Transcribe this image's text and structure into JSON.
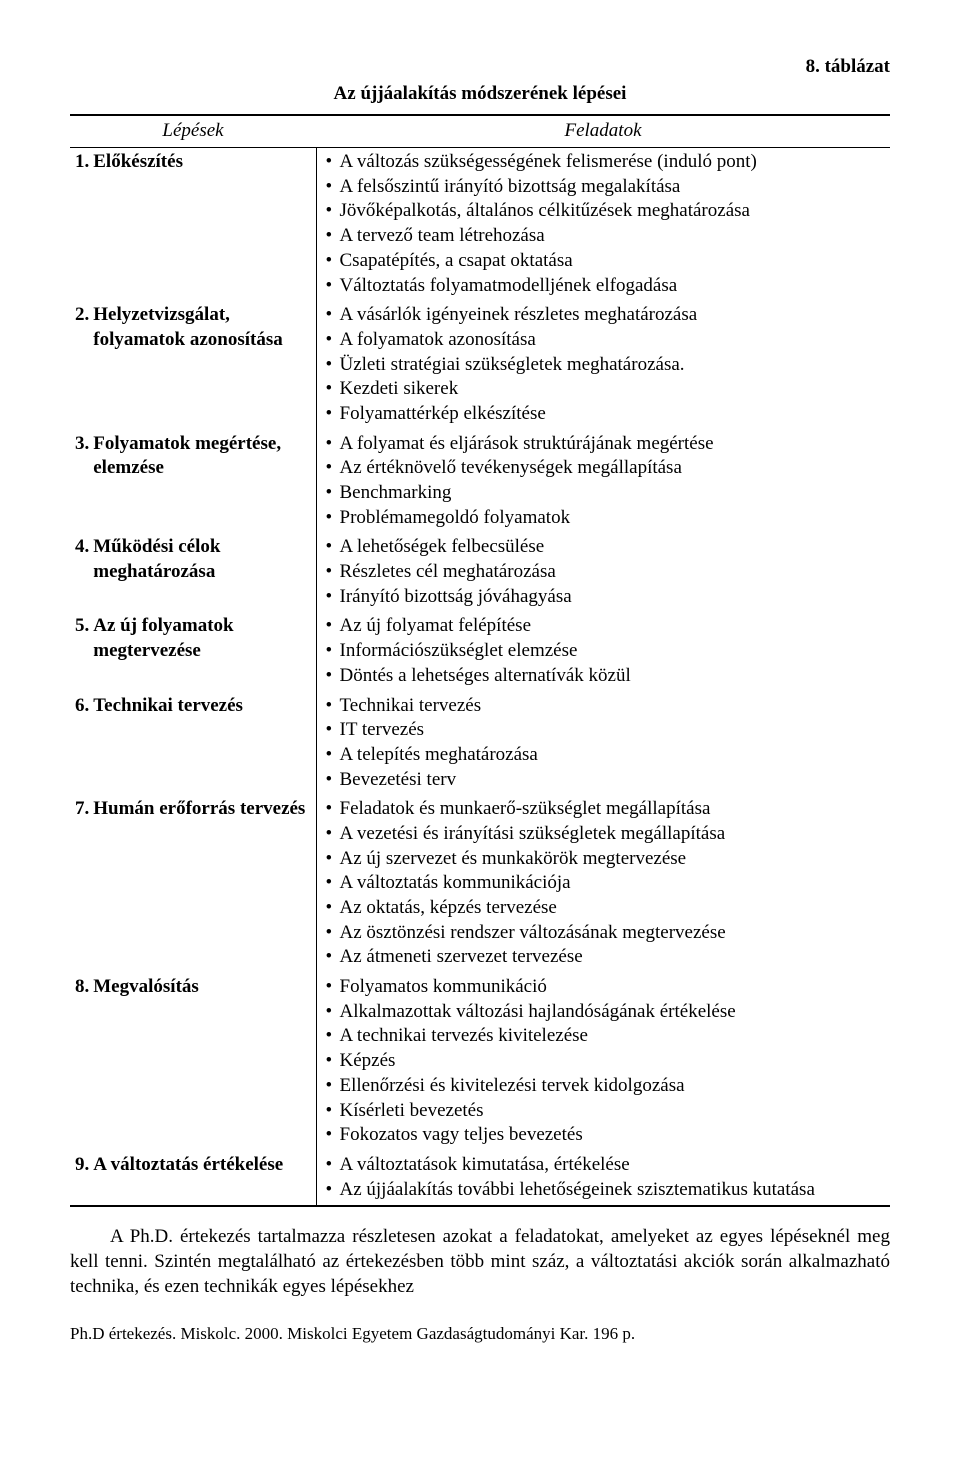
{
  "table_label": "8. táblázat",
  "title": "Az újjáalakítás módszerének lépései",
  "headers": {
    "steps": "Lépések",
    "tasks": "Feladatok"
  },
  "rows": [
    {
      "num": "1.",
      "name": "Előkészítés",
      "bold": true,
      "tasks": [
        "A változás szükségességének felismerése (induló pont)",
        "A felsőszintű irányító bizottság megalakítása",
        "Jövőképalkotás, általános célkitűzések meghatározása",
        "A tervező team létrehozása",
        "Csapatépítés, a csapat oktatása",
        "Változtatás folyamatmodelljének elfogadása"
      ]
    },
    {
      "num": "2.",
      "name": "Helyzetvizsgálat, folyamatok azonosítása",
      "bold": true,
      "tasks": [
        "A vásárlók igényeinek részletes meghatározása",
        "A folyamatok azonosítása",
        "Üzleti stratégiai szükségletek meghatározása.",
        "Kezdeti sikerek",
        "Folyamattérkép elkészítése"
      ]
    },
    {
      "num": "3.",
      "name": "Folyamatok megértése, elemzése",
      "bold": true,
      "tasks": [
        "A folyamat és eljárások struktúrájának megértése",
        "Az értéknövelő tevékenységek megállapítása",
        "Benchmarking",
        "Problémamegoldó folyamatok"
      ]
    },
    {
      "num": "4.",
      "name": "Működési célok meghatározása",
      "bold": true,
      "tasks": [
        "A lehetőségek felbecsülése",
        "Részletes cél meghatározása",
        "Irányító bizottság jóváhagyása"
      ]
    },
    {
      "num": "5.",
      "name": "Az új folyamatok megtervezése",
      "bold": true,
      "tasks": [
        "Az új folyamat felépítése",
        "Információszükséglet elemzése",
        "Döntés a lehetséges alternatívák közül"
      ]
    },
    {
      "num": "6.",
      "name": "Technikai tervezés",
      "bold": true,
      "tasks": [
        "Technikai tervezés",
        "IT tervezés",
        "A telepítés meghatározása",
        "Bevezetési terv"
      ]
    },
    {
      "num": "7.",
      "name": "Humán erőforrás tervezés",
      "bold": true,
      "tasks": [
        "Feladatok és munkaerő-szükséglet megállapítása",
        "A vezetési és irányítási szükségletek megállapítása",
        "Az új szervezet és munkakörök megtervezése",
        "A változtatás kommunikációja",
        "Az oktatás, képzés tervezése",
        "Az ösztönzési rendszer változásának megtervezése",
        "Az átmeneti szervezet tervezése"
      ]
    },
    {
      "num": "8.",
      "name": "Megvalósítás",
      "bold": true,
      "tasks": [
        "Folyamatos kommunikáció",
        "Alkalmazottak változási hajlandóságának értékelése",
        "A technikai tervezés kivitelezése",
        "Képzés",
        "Ellenőrzési és kivitelezési tervek kidolgozása",
        "Kísérleti bevezetés",
        "Fokozatos vagy teljes bevezetés"
      ]
    },
    {
      "num": "9.",
      "name": "A változtatás értékelése",
      "bold": true,
      "tasks": [
        "A változtatások kimutatása, értékelése",
        "Az újjáalakítás további lehetőségeinek szisztematikus kutatása"
      ]
    }
  ],
  "paragraph": "A Ph.D. értekezés tartalmazza részletesen azokat a feladatokat, amelyeket az egyes lépéseknél meg kell tenni. Szintén megtalálható az értekezésben több mint száz, a változtatási akciók során alkalmazható technika, és ezen technikák egyes lépésekhez",
  "footer": "Ph.D értekezés. Miskolc. 2000. Miskolci Egyetem Gazdaságtudományi Kar. 196 p."
}
